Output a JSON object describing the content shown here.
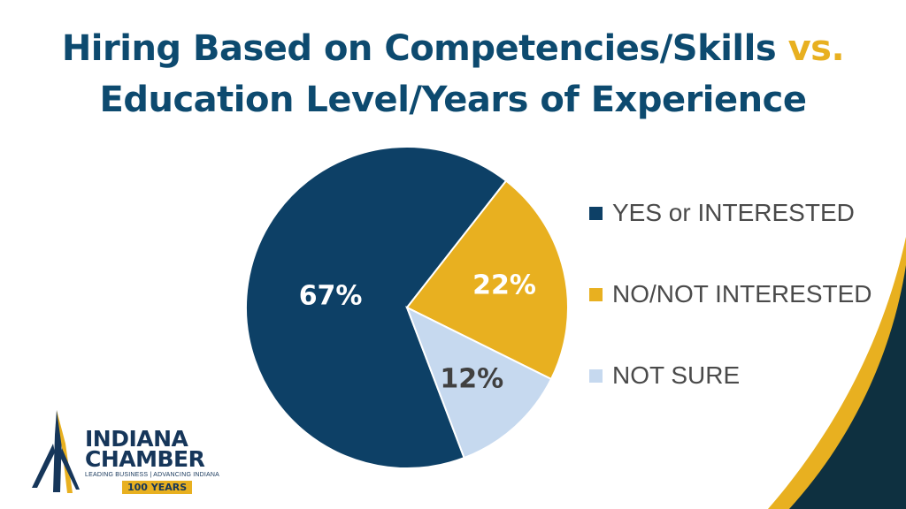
{
  "title": {
    "line1_main": "Hiring Based on Competencies/Skills ",
    "line1_vs": "vs.",
    "line2": "Education Level/Years of Experience"
  },
  "colors": {
    "title": "#0d4a6f",
    "accent": "#e8b020",
    "corner_dark": "#0e3040"
  },
  "chart_data": {
    "type": "pie",
    "categories": [
      "YES or INTERESTED",
      "NO/NOT INTERESTED",
      "NOT SURE"
    ],
    "values": [
      67,
      22,
      12
    ],
    "labels": [
      "67%",
      "22%",
      "12%"
    ],
    "colors": [
      "#0d4066",
      "#e8b020",
      "#c6d9ef"
    ],
    "label_colors": [
      "#ffffff",
      "#ffffff",
      "#404040"
    ],
    "legend_position": "right"
  },
  "logo": {
    "line1": "INDIANA",
    "line2": "CHAMBER",
    "tagline": "LEADING BUSINESS | ADVANCING INDIANA",
    "badge": "100 YEARS"
  }
}
